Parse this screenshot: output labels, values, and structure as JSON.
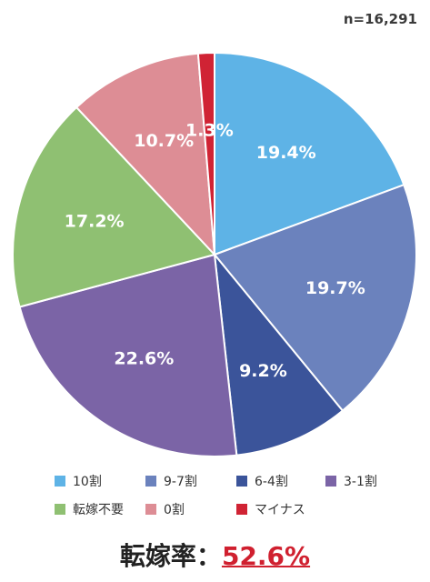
{
  "n_label": "n=16,291",
  "chart_data": {
    "type": "pie",
    "title": "",
    "slices": [
      {
        "label": "10割",
        "value": 19.4,
        "display": "19.4%",
        "color": "#5eb3e6"
      },
      {
        "label": "9-7割",
        "value": 19.7,
        "display": "19.7%",
        "color": "#6b82bd"
      },
      {
        "label": "6-4割",
        "value": 9.2,
        "display": "9.2%",
        "color": "#3b549a"
      },
      {
        "label": "3-1割",
        "value": 22.6,
        "display": "22.6%",
        "color": "#7b64a6"
      },
      {
        "label": "転嫁不要",
        "value": 17.2,
        "display": "17.2%",
        "color": "#8fc072"
      },
      {
        "label": "0割",
        "value": 10.7,
        "display": "10.7%",
        "color": "#dd8d95"
      },
      {
        "label": "マイナス",
        "value": 1.3,
        "display": "1.3%",
        "color": "#d02334"
      }
    ],
    "legend_placement": "bottom"
  },
  "footer": {
    "label": "転嫁率：",
    "value": "52.6%"
  }
}
